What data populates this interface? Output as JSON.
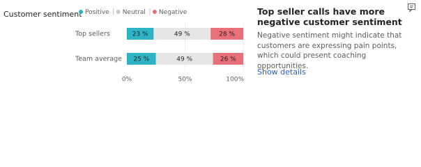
{
  "header": {
    "title": "Customer sentiment"
  },
  "chart_data": {
    "type": "stacked-bar",
    "orientation": "horizontal",
    "categories": [
      "Top sellers",
      "Team average"
    ],
    "series": [
      {
        "name": "Positive",
        "color": "#2db3c3",
        "values": [
          23,
          25
        ],
        "value_labels": [
          "23 %",
          "25 %"
        ]
      },
      {
        "name": "Neutral",
        "color": "#e6e6e6",
        "values": [
          49,
          49
        ],
        "value_labels": [
          "49 %",
          "49 %"
        ]
      },
      {
        "name": "Negative",
        "color": "#e8707a",
        "values": [
          28,
          26
        ],
        "value_labels": [
          "28 %",
          "26 %"
        ]
      }
    ],
    "xlim": [
      0,
      100
    ],
    "xticks": [
      {
        "value": 0,
        "label": "0%"
      },
      {
        "value": 50,
        "label": "50%"
      },
      {
        "value": 100,
        "label": "100%"
      }
    ],
    "grid": true
  },
  "insight": {
    "title": "Top seller calls have more negative customer sentiment",
    "body": "Negative sentiment might indicate that customers are expressing pain points, which could present coaching opportunities.",
    "link": "Show details"
  }
}
